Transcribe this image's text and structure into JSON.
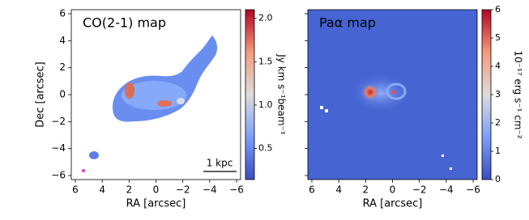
{
  "chart_data": [
    {
      "type": "image",
      "title": "CO(2-1) map",
      "xlabel": "RA [arcsec]",
      "ylabel": "Dec [arcsec]",
      "annotation": "1 kpc",
      "xlim": [
        6.3,
        -6.3
      ],
      "ylim": [
        -6.3,
        6.3
      ],
      "xticks": [
        6,
        4,
        2,
        0,
        {
          "value": -2,
          "label": "−2"
        },
        {
          "value": -4,
          "label": "−4"
        },
        {
          "value": -6,
          "label": "−6"
        }
      ],
      "yticks": [
        {
          "value": -6,
          "label": "−6"
        },
        {
          "value": -4,
          "label": "−4"
        },
        {
          "value": -2,
          "label": "−2"
        },
        0,
        2,
        4,
        6
      ],
      "yticklabels": true,
      "colorbar": {
        "label": "Jy km s⁻¹beam⁻¹",
        "lim": [
          0.14,
          2.1
        ],
        "ticks": [
          0.5,
          {
            "value": 1.0,
            "label": "1.0"
          },
          1.5,
          {
            "value": 2.0,
            "label": "2.0"
          }
        ]
      }
    },
    {
      "type": "image",
      "title": "Paα map",
      "xlabel": "RA [arcsec]",
      "xlim": [
        6.3,
        -6.3
      ],
      "ylim": [
        -6.3,
        6.3
      ],
      "xticks": [
        6,
        4,
        2,
        0,
        {
          "value": -2,
          "label": "−2"
        },
        {
          "value": -4,
          "label": "−4"
        },
        {
          "value": -6,
          "label": "−6"
        }
      ],
      "yticks": [
        -6,
        -4,
        -2,
        0,
        2,
        4,
        6
      ],
      "yticklabels": false,
      "colorbar": {
        "label": "10⁻¹⁷ erg s⁻¹ cm⁻²",
        "lim": [
          0,
          6
        ],
        "ticks": [
          0,
          1,
          2,
          3,
          4,
          5,
          6
        ]
      }
    }
  ]
}
